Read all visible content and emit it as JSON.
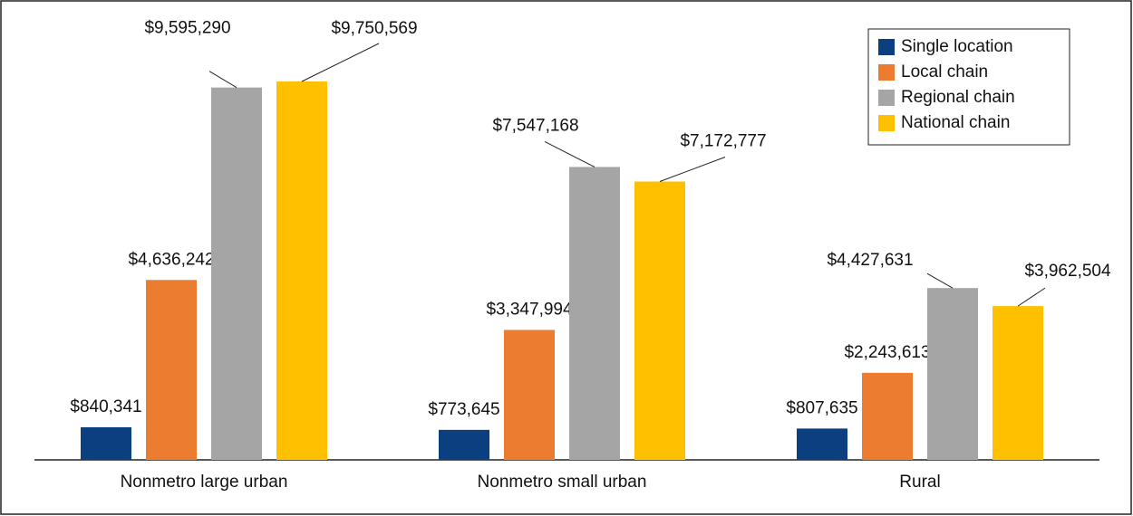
{
  "chart_data": {
    "type": "bar",
    "categories": [
      "Nonmetro large urban",
      "Nonmetro small urban",
      "Rural"
    ],
    "series": [
      {
        "name": "Single location",
        "color": "#0b3f7f",
        "values": [
          840341,
          773645,
          807635
        ],
        "value_labels": [
          "$840,341",
          "$773,645",
          "$807,635"
        ]
      },
      {
        "name": "Local chain",
        "color": "#ec7c30",
        "values": [
          4636242,
          3347994,
          2243613
        ],
        "value_labels": [
          "$4,636,242",
          "$3,347,994",
          "$2,243,613"
        ]
      },
      {
        "name": "Regional chain",
        "color": "#a5a5a5",
        "values": [
          9595290,
          7547168,
          4427631
        ],
        "value_labels": [
          "$9,595,290",
          "$7,547,168",
          "$4,427,631"
        ]
      },
      {
        "name": "National chain",
        "color": "#ffc000",
        "values": [
          9750569,
          7172777,
          3962504
        ],
        "value_labels": [
          "$9,750,569",
          "$7,172,777",
          "$3,962,504"
        ]
      }
    ],
    "legend": "upper right"
  }
}
